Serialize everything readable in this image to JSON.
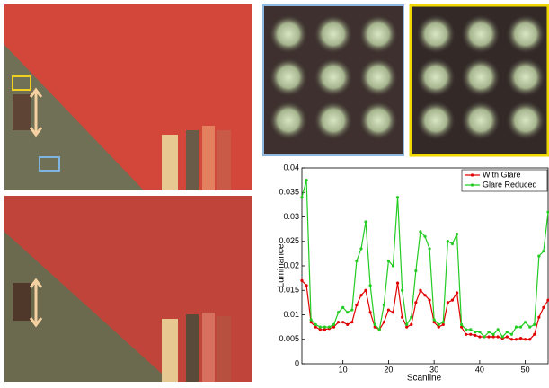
{
  "chart_data": {
    "type": "line",
    "ylabel": "Luminance",
    "xlabel": "Scanline",
    "x": [
      1,
      2,
      3,
      4,
      5,
      6,
      7,
      8,
      9,
      10,
      11,
      12,
      13,
      14,
      15,
      16,
      17,
      18,
      19,
      20,
      21,
      22,
      23,
      24,
      25,
      26,
      27,
      28,
      29,
      30,
      31,
      32,
      33,
      34,
      35,
      36,
      37,
      38,
      39,
      40,
      41,
      42,
      43,
      44,
      45,
      46,
      47,
      48,
      49,
      50,
      51,
      52,
      53,
      54,
      55
    ],
    "series": [
      {
        "name": "With Glare",
        "color": "#e00000",
        "values": [
          0.017,
          0.016,
          0.0085,
          0.0075,
          0.007,
          0.007,
          0.0072,
          0.0075,
          0.0085,
          0.0085,
          0.008,
          0.0085,
          0.012,
          0.014,
          0.015,
          0.0105,
          0.0075,
          0.007,
          0.0085,
          0.011,
          0.0105,
          0.0165,
          0.0095,
          0.0075,
          0.008,
          0.0125,
          0.015,
          0.014,
          0.013,
          0.0085,
          0.0075,
          0.008,
          0.0125,
          0.013,
          0.0145,
          0.0075,
          0.006,
          0.006,
          0.0058,
          0.0055,
          0.0055,
          0.0055,
          0.0055,
          0.0055,
          0.0052,
          0.0055,
          0.005,
          0.005,
          0.0052,
          0.005,
          0.005,
          0.006,
          0.0095,
          0.0115,
          0.013
        ]
      },
      {
        "name": "Glare Reduced",
        "color": "#22cc22",
        "values": [
          0.034,
          0.0375,
          0.009,
          0.008,
          0.0075,
          0.0075,
          0.0075,
          0.008,
          0.0105,
          0.0115,
          0.0105,
          0.011,
          0.021,
          0.0235,
          0.029,
          0.016,
          0.008,
          0.007,
          0.012,
          0.021,
          0.02,
          0.034,
          0.015,
          0.008,
          0.0095,
          0.019,
          0.027,
          0.026,
          0.0235,
          0.009,
          0.008,
          0.0085,
          0.025,
          0.0245,
          0.0265,
          0.008,
          0.007,
          0.007,
          0.0065,
          0.0065,
          0.0055,
          0.0065,
          0.006,
          0.007,
          0.0055,
          0.0065,
          0.006,
          0.0075,
          0.0075,
          0.0085,
          0.0075,
          0.008,
          0.022,
          0.023,
          0.031
        ]
      }
    ],
    "xlim": [
      1,
      55
    ],
    "ylim": [
      0,
      0.04
    ],
    "xticks": [
      10,
      20,
      30,
      40,
      50
    ],
    "yticks": [
      0,
      0.005,
      0.01,
      0.015,
      0.02,
      0.025,
      0.03,
      0.035,
      0.04
    ],
    "legend": "upper right"
  }
}
